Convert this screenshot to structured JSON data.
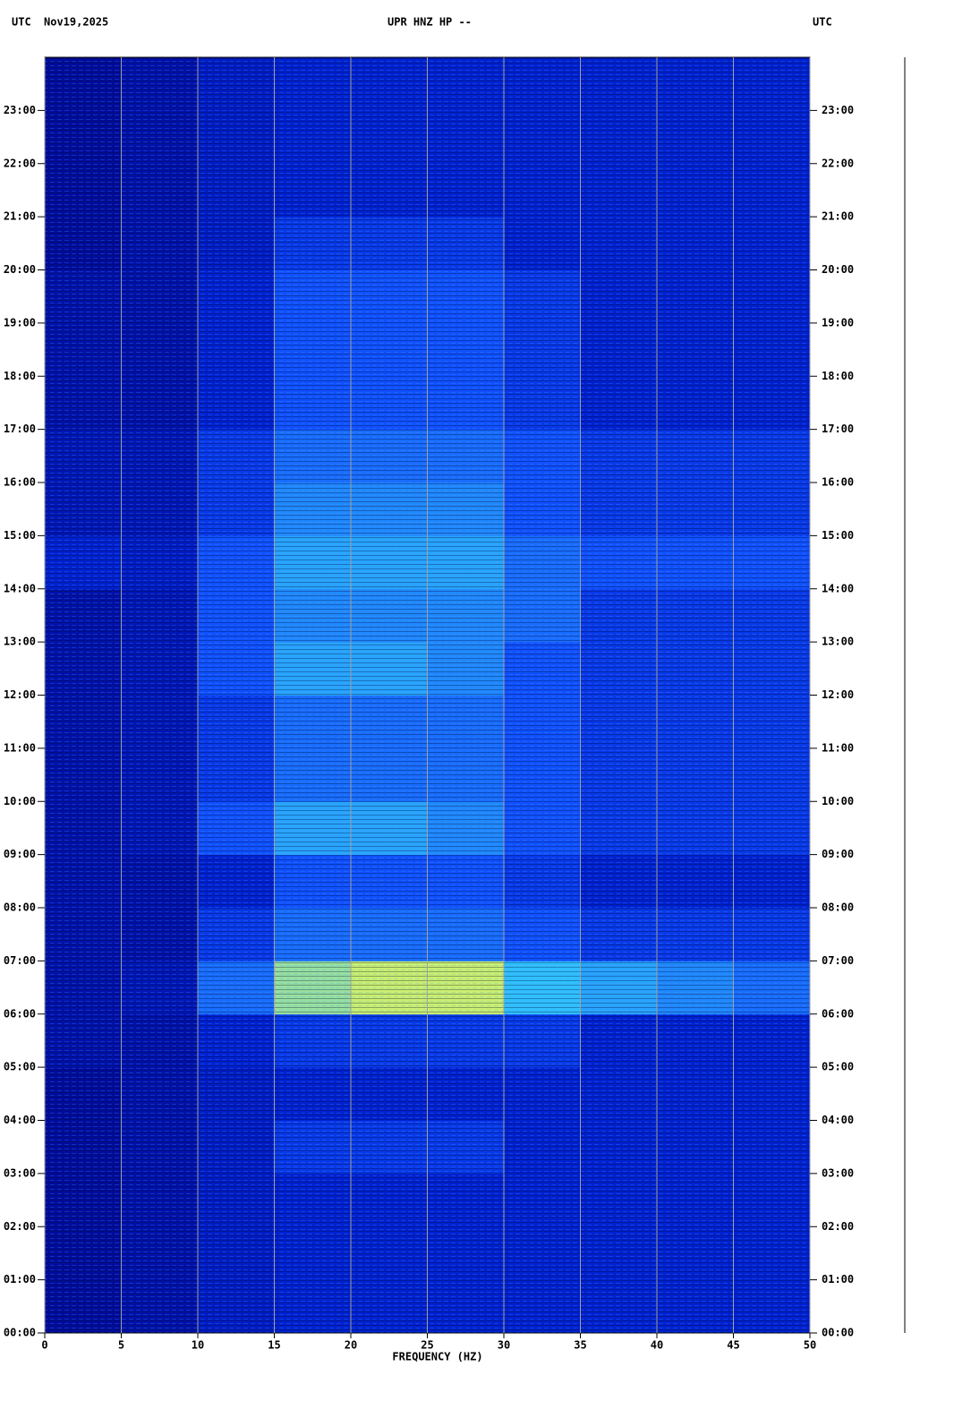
{
  "chart_data": {
    "type": "spectrogram",
    "title": "UPR HNZ HP --",
    "timezone_left": "UTC",
    "date": "Nov19,2025",
    "timezone_right": "UTC",
    "x_label": "FREQUENCY (HZ)",
    "xlim": [
      0,
      50
    ],
    "xticks": [
      0,
      5,
      10,
      15,
      20,
      25,
      30,
      35,
      40,
      45,
      50
    ],
    "ylim": [
      0,
      24
    ],
    "yticks": [
      {
        "value": 0,
        "label": "00:00"
      },
      {
        "value": 1,
        "label": "01:00"
      },
      {
        "value": 2,
        "label": "02:00"
      },
      {
        "value": 3,
        "label": "03:00"
      },
      {
        "value": 4,
        "label": "04:00"
      },
      {
        "value": 5,
        "label": "05:00"
      },
      {
        "value": 6,
        "label": "06:00"
      },
      {
        "value": 7,
        "label": "07:00"
      },
      {
        "value": 8,
        "label": "08:00"
      },
      {
        "value": 9,
        "label": "09:00"
      },
      {
        "value": 10,
        "label": "10:00"
      },
      {
        "value": 11,
        "label": "11:00"
      },
      {
        "value": 12,
        "label": "12:00"
      },
      {
        "value": 13,
        "label": "13:00"
      },
      {
        "value": 14,
        "label": "14:00"
      },
      {
        "value": 15,
        "label": "15:00"
      },
      {
        "value": 16,
        "label": "16:00"
      },
      {
        "value": 17,
        "label": "17:00"
      },
      {
        "value": 18,
        "label": "18:00"
      },
      {
        "value": 19,
        "label": "19:00"
      },
      {
        "value": 20,
        "label": "20:00"
      },
      {
        "value": 21,
        "label": "21:00"
      },
      {
        "value": 22,
        "label": "22:00"
      },
      {
        "value": 23,
        "label": "23:00"
      }
    ],
    "grid": true,
    "grid_color": "#a0a0a0",
    "colorscale": [
      [
        0,
        "#000080"
      ],
      [
        3,
        "#0020d0"
      ],
      [
        4,
        "#1050ff"
      ],
      [
        6,
        "#30c0ff"
      ],
      [
        8,
        "#ffff40"
      ],
      [
        10,
        "#ff2000"
      ]
    ],
    "z": [
      [
        1,
        1.5,
        2.5,
        3,
        3,
        3,
        3,
        3,
        3,
        3
      ],
      [
        1,
        1.5,
        2.5,
        3,
        3,
        3,
        3,
        3,
        3,
        3
      ],
      [
        1,
        1.5,
        2.5,
        3,
        3,
        3,
        3,
        3,
        3,
        3
      ],
      [
        1,
        1.5,
        2.5,
        3.5,
        3.5,
        3.5,
        3,
        3,
        3,
        3
      ],
      [
        1,
        1.5,
        2.5,
        3,
        3,
        3,
        3,
        3,
        3,
        3
      ],
      [
        1.5,
        1.5,
        3,
        3.5,
        3.5,
        3.5,
        3.5,
        3,
        3,
        3
      ],
      [
        1.5,
        2,
        4.5,
        7,
        7.5,
        7.5,
        6,
        5.5,
        5,
        4.5
      ],
      [
        1.5,
        1.5,
        3.5,
        4.5,
        4.5,
        4.5,
        4,
        3.5,
        3.5,
        3.5
      ],
      [
        1.5,
        1.5,
        3,
        4,
        4,
        4,
        3.5,
        3,
        3,
        3
      ],
      [
        1.5,
        2,
        4,
        5.5,
        5.5,
        5,
        4,
        3.5,
        3.5,
        3.5
      ],
      [
        1.5,
        2,
        3.5,
        4.5,
        4.5,
        4.5,
        4,
        3.5,
        3.5,
        3.5
      ],
      [
        1.5,
        2,
        3.5,
        4.5,
        4.5,
        4.5,
        4,
        3.5,
        3.5,
        3.5
      ],
      [
        1.5,
        2,
        4,
        5.5,
        5.5,
        5,
        4,
        3.5,
        3.5,
        3.5
      ],
      [
        1.5,
        2,
        4,
        5,
        5,
        5,
        4.5,
        3.5,
        3.5,
        3.5
      ],
      [
        3,
        2.5,
        4,
        5.5,
        5.5,
        5.5,
        4.5,
        4,
        4,
        4
      ],
      [
        2,
        2,
        3.5,
        5,
        5,
        5,
        4,
        3.5,
        3.5,
        3.5
      ],
      [
        2,
        2,
        3.5,
        4.5,
        4.5,
        4.5,
        4,
        3.5,
        3.5,
        3.5
      ],
      [
        1.5,
        1.5,
        3,
        4,
        4,
        4,
        3.5,
        3,
        3,
        3
      ],
      [
        1.5,
        1.5,
        3,
        4,
        4,
        4,
        3.5,
        3,
        3,
        3
      ],
      [
        1.5,
        1.5,
        3,
        4,
        4,
        4,
        3.5,
        3,
        3,
        3
      ],
      [
        1,
        1.5,
        2.5,
        3.5,
        3.5,
        3.5,
        3,
        3,
        3,
        3
      ],
      [
        1,
        1.5,
        2.5,
        3,
        3,
        3,
        3,
        3,
        3,
        3
      ],
      [
        1,
        1.5,
        2.5,
        3,
        3,
        3,
        3,
        3,
        3,
        3
      ],
      [
        1,
        1.5,
        2.5,
        3,
        3,
        3,
        3,
        3,
        3,
        3
      ]
    ]
  }
}
